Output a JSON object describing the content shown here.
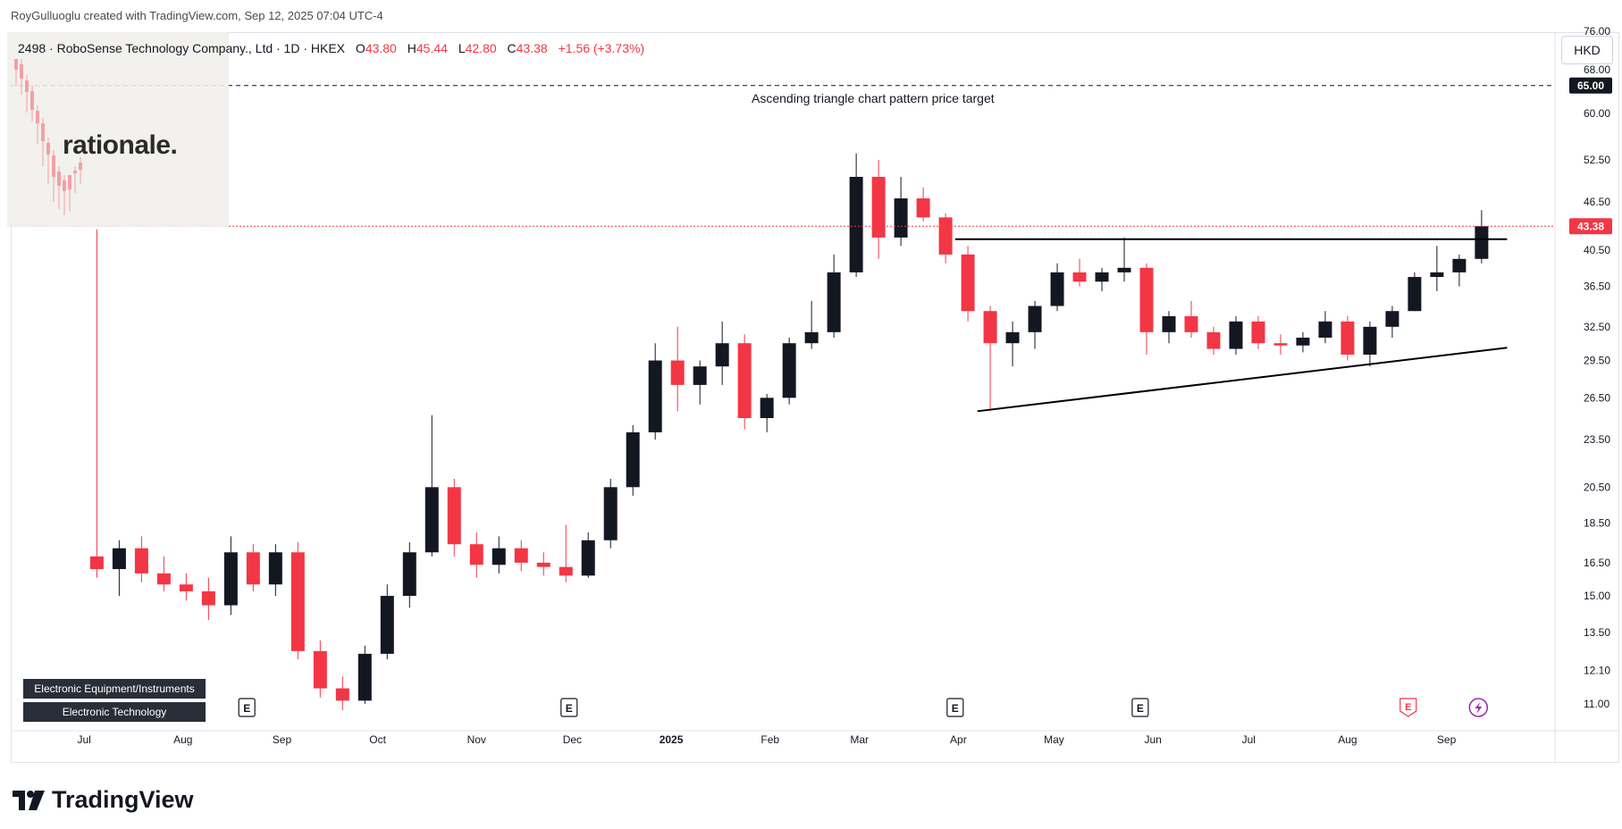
{
  "header": {
    "attribution": "RoyGulluoglu created with TradingView.com, Sep 12, 2025 07:04 UTC-4"
  },
  "legend": {
    "symbol_text": "2498 · RoboSense Technology Company., Ltd · 1D · HKEX",
    "open_label": "O",
    "open": "43.80",
    "high_label": "H",
    "high": "45.44",
    "low_label": "L",
    "low": "42.80",
    "close_label": "C",
    "close": "43.38",
    "change": "+1.56 (+3.73%)"
  },
  "currency_button": "HKD",
  "logo": {
    "text": "rationale."
  },
  "sector_tags": [
    "Electronic Equipment/Instruments",
    "Electronic Technology"
  ],
  "brand": {
    "name": "TradingView"
  },
  "colors": {
    "up": "#131722",
    "down": "#f23645",
    "price_label": "#f23645",
    "target_label": "#131722"
  },
  "icons": {
    "earnings": "earnings-icon",
    "dividend": "lightning-icon"
  },
  "chart_data": {
    "type": "candlestick",
    "scale": "log",
    "currency": "HKD",
    "ylim": [
      10.5,
      75.0
    ],
    "y_ticks": [
      "11.00",
      "12.10",
      "13.50",
      "15.00",
      "16.50",
      "18.50",
      "20.50",
      "23.50",
      "26.50",
      "29.50",
      "32.50",
      "36.50",
      "40.50",
      "46.50",
      "52.50",
      "60.00",
      "68.00",
      "76.00"
    ],
    "x_labels": [
      {
        "label": "Jul",
        "date": "2024-07-01"
      },
      {
        "label": "Aug",
        "date": "2024-08-01"
      },
      {
        "label": "Sep",
        "date": "2024-09-01"
      },
      {
        "label": "Oct",
        "date": "2024-10-01"
      },
      {
        "label": "Nov",
        "date": "2024-11-01"
      },
      {
        "label": "Dec",
        "date": "2024-12-01"
      },
      {
        "label": "2025",
        "date": "2025-01-01",
        "bold": true
      },
      {
        "label": "Feb",
        "date": "2025-02-01"
      },
      {
        "label": "Mar",
        "date": "2025-03-01"
      },
      {
        "label": "Apr",
        "date": "2025-04-01"
      },
      {
        "label": "May",
        "date": "2025-05-01"
      },
      {
        "label": "Jun",
        "date": "2025-06-01"
      },
      {
        "label": "Jul",
        "date": "2025-07-01"
      },
      {
        "label": "Aug",
        "date": "2025-08-01"
      },
      {
        "label": "Sep",
        "date": "2025-09-01"
      }
    ],
    "date_range": [
      "2024-06-08",
      "2025-10-05"
    ],
    "last_price": "43.38",
    "price_target": {
      "value": 65.0,
      "label": "65.00",
      "annotation": "Ascending triangle chart pattern price target"
    },
    "resistance_line": {
      "value": 41.8,
      "from": "2025-03-31",
      "to": "2025-09-20"
    },
    "support_line": {
      "from": {
        "date": "2025-04-07",
        "value": 25.5
      },
      "to": {
        "date": "2025-09-20",
        "value": 30.6
      }
    },
    "earnings_events": [
      "2024-08-21",
      "2024-11-30",
      "2025-03-31",
      "2025-05-28",
      "2025-08-20"
    ],
    "dividend_events": [
      "2025-09-11"
    ],
    "candle_series": [
      {
        "date": "2024-07-05",
        "o": 16.8,
        "h": 43.0,
        "l": 15.8,
        "c": 16.2
      },
      {
        "date": "2024-07-12",
        "o": 16.2,
        "h": 17.6,
        "l": 15.0,
        "c": 17.2
      },
      {
        "date": "2024-07-19",
        "o": 17.2,
        "h": 17.8,
        "l": 15.6,
        "c": 16.0
      },
      {
        "date": "2024-07-26",
        "o": 16.0,
        "h": 16.8,
        "l": 15.2,
        "c": 15.5
      },
      {
        "date": "2024-08-02",
        "o": 15.5,
        "h": 16.0,
        "l": 14.8,
        "c": 15.2
      },
      {
        "date": "2024-08-09",
        "o": 15.2,
        "h": 15.8,
        "l": 14.0,
        "c": 14.6
      },
      {
        "date": "2024-08-16",
        "o": 14.6,
        "h": 17.8,
        "l": 14.2,
        "c": 17.0
      },
      {
        "date": "2024-08-23",
        "o": 17.0,
        "h": 17.4,
        "l": 15.2,
        "c": 15.5
      },
      {
        "date": "2024-08-30",
        "o": 15.5,
        "h": 17.4,
        "l": 15.0,
        "c": 17.0
      },
      {
        "date": "2024-09-06",
        "o": 17.0,
        "h": 17.5,
        "l": 12.5,
        "c": 12.8
      },
      {
        "date": "2024-09-13",
        "o": 12.8,
        "h": 13.2,
        "l": 11.2,
        "c": 11.5
      },
      {
        "date": "2024-09-20",
        "o": 11.5,
        "h": 11.9,
        "l": 10.8,
        "c": 11.1
      },
      {
        "date": "2024-09-27",
        "o": 11.1,
        "h": 13.0,
        "l": 11.0,
        "c": 12.7
      },
      {
        "date": "2024-10-04",
        "o": 12.7,
        "h": 15.5,
        "l": 12.5,
        "c": 15.0
      },
      {
        "date": "2024-10-11",
        "o": 15.0,
        "h": 17.5,
        "l": 14.5,
        "c": 17.0
      },
      {
        "date": "2024-10-18",
        "o": 17.0,
        "h": 25.2,
        "l": 16.8,
        "c": 20.5
      },
      {
        "date": "2024-10-25",
        "o": 20.5,
        "h": 21.0,
        "l": 16.8,
        "c": 17.4
      },
      {
        "date": "2024-11-01",
        "o": 17.4,
        "h": 18.0,
        "l": 15.8,
        "c": 16.4
      },
      {
        "date": "2024-11-08",
        "o": 16.4,
        "h": 17.8,
        "l": 16.0,
        "c": 17.2
      },
      {
        "date": "2024-11-15",
        "o": 17.2,
        "h": 17.6,
        "l": 16.1,
        "c": 16.5
      },
      {
        "date": "2024-11-22",
        "o": 16.5,
        "h": 17.0,
        "l": 15.9,
        "c": 16.3
      },
      {
        "date": "2024-11-29",
        "o": 16.3,
        "h": 18.4,
        "l": 15.6,
        "c": 15.9
      },
      {
        "date": "2024-12-06",
        "o": 15.9,
        "h": 18.0,
        "l": 15.8,
        "c": 17.6
      },
      {
        "date": "2024-12-13",
        "o": 17.6,
        "h": 21.0,
        "l": 17.2,
        "c": 20.5
      },
      {
        "date": "2024-12-20",
        "o": 20.5,
        "h": 24.5,
        "l": 20.0,
        "c": 24.0
      },
      {
        "date": "2024-12-27",
        "o": 24.0,
        "h": 31.0,
        "l": 23.5,
        "c": 29.5
      },
      {
        "date": "2025-01-03",
        "o": 29.5,
        "h": 32.5,
        "l": 25.5,
        "c": 27.5
      },
      {
        "date": "2025-01-10",
        "o": 27.5,
        "h": 29.5,
        "l": 26.0,
        "c": 29.0
      },
      {
        "date": "2025-01-17",
        "o": 29.0,
        "h": 33.0,
        "l": 27.5,
        "c": 31.0
      },
      {
        "date": "2025-01-24",
        "o": 31.0,
        "h": 31.8,
        "l": 24.2,
        "c": 25.0
      },
      {
        "date": "2025-01-31",
        "o": 25.0,
        "h": 26.8,
        "l": 24.0,
        "c": 26.5
      },
      {
        "date": "2025-02-07",
        "o": 26.5,
        "h": 31.5,
        "l": 26.0,
        "c": 31.0
      },
      {
        "date": "2025-02-14",
        "o": 31.0,
        "h": 35.0,
        "l": 30.5,
        "c": 32.0
      },
      {
        "date": "2025-02-21",
        "o": 32.0,
        "h": 40.0,
        "l": 31.5,
        "c": 38.0
      },
      {
        "date": "2025-02-28",
        "o": 38.0,
        "h": 53.5,
        "l": 37.5,
        "c": 50.0
      },
      {
        "date": "2025-03-07",
        "o": 50.0,
        "h": 52.5,
        "l": 39.5,
        "c": 42.0
      },
      {
        "date": "2025-03-14",
        "o": 42.0,
        "h": 50.0,
        "l": 41.0,
        "c": 47.0
      },
      {
        "date": "2025-03-21",
        "o": 47.0,
        "h": 48.5,
        "l": 44.0,
        "c": 44.5
      },
      {
        "date": "2025-03-28",
        "o": 44.5,
        "h": 45.0,
        "l": 39.0,
        "c": 40.0
      },
      {
        "date": "2025-04-04",
        "o": 40.0,
        "h": 41.0,
        "l": 33.0,
        "c": 34.0
      },
      {
        "date": "2025-04-11",
        "o": 34.0,
        "h": 34.5,
        "l": 25.5,
        "c": 31.0
      },
      {
        "date": "2025-04-18",
        "o": 31.0,
        "h": 33.0,
        "l": 29.0,
        "c": 32.0
      },
      {
        "date": "2025-04-25",
        "o": 32.0,
        "h": 35.0,
        "l": 30.5,
        "c": 34.5
      },
      {
        "date": "2025-05-02",
        "o": 34.5,
        "h": 39.0,
        "l": 34.0,
        "c": 38.0
      },
      {
        "date": "2025-05-09",
        "o": 38.0,
        "h": 39.5,
        "l": 36.5,
        "c": 37.0
      },
      {
        "date": "2025-05-16",
        "o": 37.0,
        "h": 38.5,
        "l": 36.0,
        "c": 38.0
      },
      {
        "date": "2025-05-23",
        "o": 38.0,
        "h": 42.0,
        "l": 37.0,
        "c": 38.5
      },
      {
        "date": "2025-05-30",
        "o": 38.5,
        "h": 39.0,
        "l": 30.0,
        "c": 32.0
      },
      {
        "date": "2025-06-06",
        "o": 32.0,
        "h": 34.0,
        "l": 31.0,
        "c": 33.5
      },
      {
        "date": "2025-06-13",
        "o": 33.5,
        "h": 35.0,
        "l": 31.5,
        "c": 32.0
      },
      {
        "date": "2025-06-20",
        "o": 32.0,
        "h": 32.5,
        "l": 30.0,
        "c": 30.5
      },
      {
        "date": "2025-06-27",
        "o": 30.5,
        "h": 33.5,
        "l": 30.0,
        "c": 33.0
      },
      {
        "date": "2025-07-04",
        "o": 33.0,
        "h": 33.5,
        "l": 30.5,
        "c": 31.0
      },
      {
        "date": "2025-07-11",
        "o": 31.0,
        "h": 31.8,
        "l": 30.0,
        "c": 30.8
      },
      {
        "date": "2025-07-18",
        "o": 30.8,
        "h": 32.0,
        "l": 30.2,
        "c": 31.5
      },
      {
        "date": "2025-07-25",
        "o": 31.5,
        "h": 34.0,
        "l": 31.0,
        "c": 33.0
      },
      {
        "date": "2025-08-01",
        "o": 33.0,
        "h": 33.5,
        "l": 29.5,
        "c": 30.0
      },
      {
        "date": "2025-08-08",
        "o": 30.0,
        "h": 33.0,
        "l": 29.0,
        "c": 32.5
      },
      {
        "date": "2025-08-15",
        "o": 32.5,
        "h": 34.5,
        "l": 31.5,
        "c": 34.0
      },
      {
        "date": "2025-08-22",
        "o": 34.0,
        "h": 38.0,
        "l": 34.0,
        "c": 37.5
      },
      {
        "date": "2025-08-29",
        "o": 37.5,
        "h": 41.0,
        "l": 36.0,
        "c": 38.0
      },
      {
        "date": "2025-09-05",
        "o": 38.0,
        "h": 40.0,
        "l": 36.5,
        "c": 39.5
      },
      {
        "date": "2025-09-12",
        "o": 39.5,
        "h": 45.44,
        "l": 39.0,
        "c": 43.38
      }
    ]
  }
}
